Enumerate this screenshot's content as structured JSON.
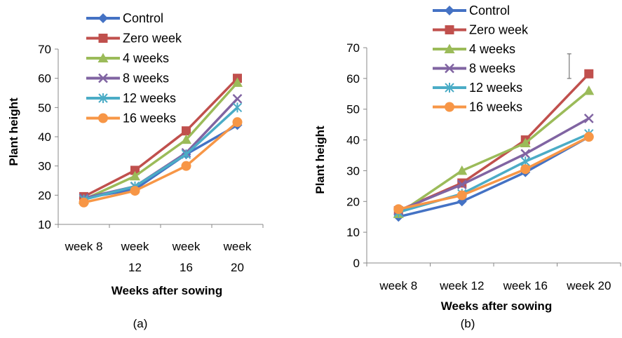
{
  "colors": {
    "control": "#4472C4",
    "zero_week": "#C0504D",
    "4_weeks": "#9BBB59",
    "8_weeks": "#8064A2",
    "12_weeks": "#4BACC6",
    "16_weeks": "#F79646"
  },
  "chart_data": [
    {
      "type": "line",
      "caption": "(a)",
      "xlabel": "Weeks after sowing",
      "ylabel": "Plant height",
      "categories": [
        [
          "week 8"
        ],
        [
          "week",
          "12"
        ],
        [
          "week",
          "16"
        ],
        [
          "week",
          "20"
        ]
      ],
      "ylim": [
        10,
        70
      ],
      "yticks": [
        10,
        20,
        30,
        40,
        50,
        60,
        70
      ],
      "grid": false,
      "legend": "top-left",
      "series": [
        {
          "name": "Control",
          "color": "#4472C4",
          "marker": "diamond",
          "values": [
            19,
            22,
            34,
            44
          ]
        },
        {
          "name": "Zero week",
          "color": "#C0504D",
          "marker": "square",
          "values": [
            19.5,
            28.5,
            42,
            60
          ]
        },
        {
          "name": "4 weeks",
          "color": "#9BBB59",
          "marker": "triangle",
          "values": [
            18.5,
            26.5,
            39,
            58.5
          ]
        },
        {
          "name": "8 weeks",
          "color": "#8064A2",
          "marker": "x",
          "values": [
            19,
            23,
            34.5,
            53
          ]
        },
        {
          "name": "12 weeks",
          "color": "#4BACC6",
          "marker": "star",
          "values": [
            18.5,
            23,
            34,
            50
          ]
        },
        {
          "name": "16 weeks",
          "color": "#F79646",
          "marker": "circle",
          "values": [
            17.5,
            21.5,
            30,
            45
          ]
        }
      ]
    },
    {
      "type": "line",
      "caption": "(b)",
      "xlabel": "Weeks after sowing",
      "ylabel": "Plant height",
      "categories": [
        [
          "week 8"
        ],
        [
          "week 12"
        ],
        [
          "week 16"
        ],
        [
          "week 20"
        ]
      ],
      "ylim": [
        0,
        70
      ],
      "yticks": [
        0,
        10,
        20,
        30,
        40,
        50,
        60,
        70
      ],
      "grid": false,
      "legend": "top-left",
      "error_bar": {
        "category": "week 20",
        "low": 60,
        "high": 68
      },
      "series": [
        {
          "name": "Control",
          "color": "#4472C4",
          "marker": "diamond",
          "values": [
            15,
            20,
            29.5,
            41
          ]
        },
        {
          "name": "Zero week",
          "color": "#C0504D",
          "marker": "square",
          "values": [
            17,
            26,
            40,
            61.5
          ]
        },
        {
          "name": "4 weeks",
          "color": "#9BBB59",
          "marker": "triangle",
          "values": [
            16,
            30,
            39,
            56
          ]
        },
        {
          "name": "8 weeks",
          "color": "#8064A2",
          "marker": "x",
          "values": [
            17,
            25.5,
            35.5,
            47
          ]
        },
        {
          "name": "12 weeks",
          "color": "#4BACC6",
          "marker": "star",
          "values": [
            16.5,
            22.5,
            33,
            42
          ]
        },
        {
          "name": "16 weeks",
          "color": "#F79646",
          "marker": "circle",
          "values": [
            17.5,
            22,
            30.5,
            41
          ]
        }
      ]
    }
  ]
}
